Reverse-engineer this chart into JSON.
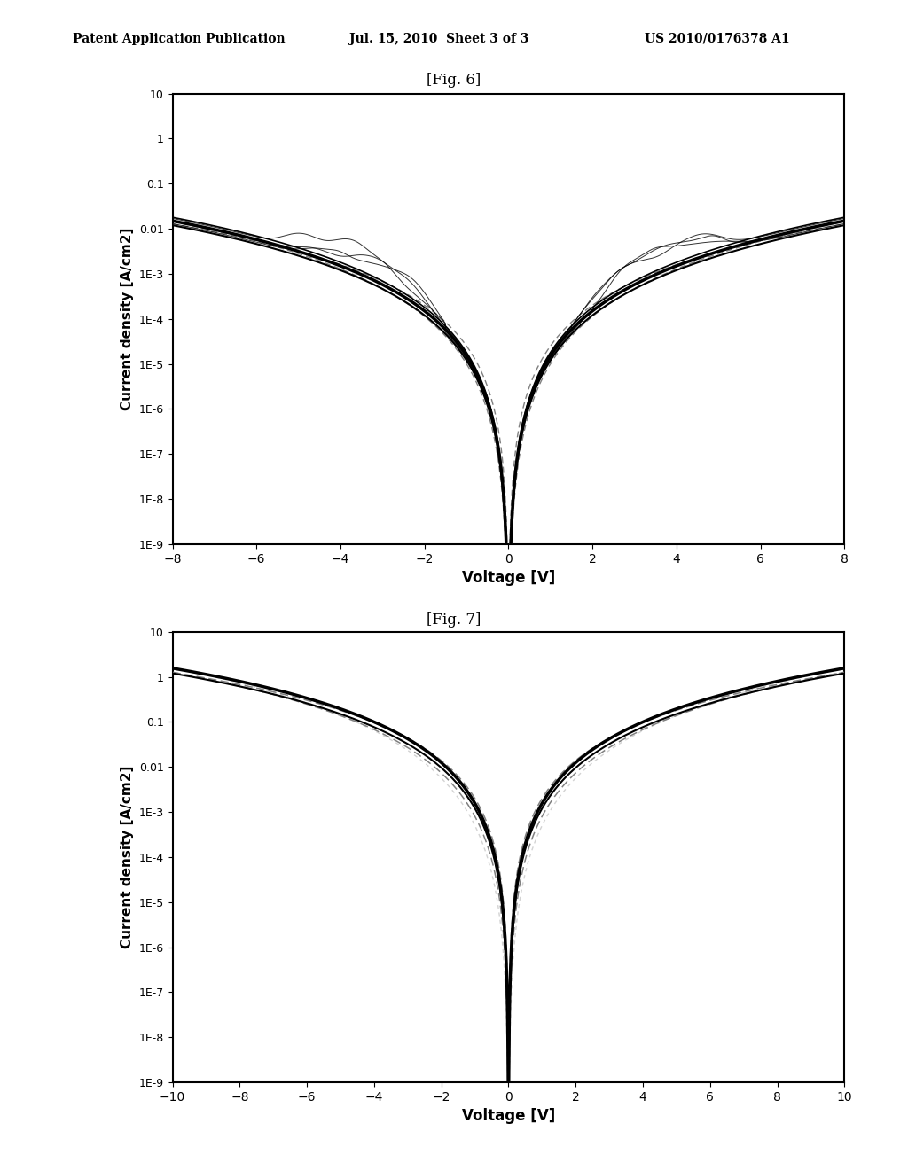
{
  "header_left": "Patent Application Publication",
  "header_center": "Jul. 15, 2010  Sheet 3 of 3",
  "header_right": "US 2010/0176378 A1",
  "fig6_label": "[Fig. 6]",
  "fig7_label": "[Fig. 7]",
  "fig6_xlabel": "Voltage [V]",
  "fig6_ylabel": "Current density [A/cm2]",
  "fig7_xlabel": "Voltage [V]",
  "fig7_ylabel": "Current density [A/cm2]",
  "fig6_xlim": [
    -8,
    8
  ],
  "fig6_ylim_log": [
    1e-09,
    10
  ],
  "fig7_xlim": [
    -10,
    10
  ],
  "fig7_ylim_log": [
    1e-09,
    10
  ],
  "fig6_xticks": [
    -8,
    -6,
    -4,
    -2,
    0,
    2,
    4,
    6,
    8
  ],
  "fig7_xticks": [
    -10,
    -8,
    -6,
    -4,
    -2,
    0,
    2,
    4,
    6,
    8,
    10
  ],
  "background_color": "#ffffff"
}
